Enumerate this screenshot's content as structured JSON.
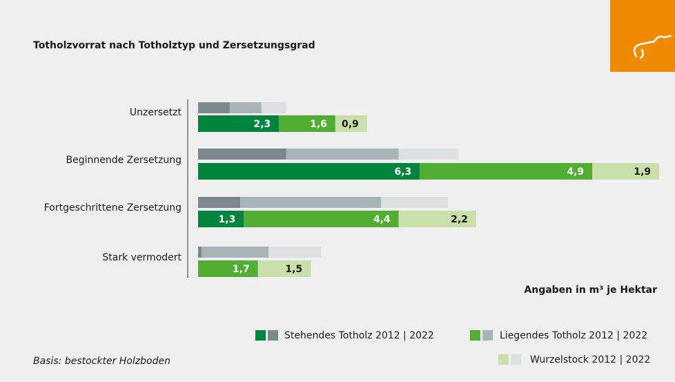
{
  "chart_data": {
    "type": "bar",
    "orientation": "horizontal",
    "stacked": true,
    "title": "Totholzvorrat nach Totholztyp und Zersetzungsgrad",
    "note": "Angaben in m³ je Hektar",
    "source": "Basis: bestockter Holzboden",
    "categories": [
      "Unzersetzt",
      "Beginnende Zersetzung",
      "Fortgeschrittene Zersetzung",
      "Stark vermodert"
    ],
    "series": [
      {
        "name": "Stehendes Totholz 2012 | 2022",
        "color": "#00843d",
        "color_2012": "#7c888d",
        "values": [
          2.3,
          6.3,
          1.3,
          null
        ],
        "value_labels": [
          "2,3",
          "6,3",
          "1,3",
          null
        ],
        "values_2012": [
          0.9,
          2.5,
          1.2,
          0.1
        ]
      },
      {
        "name": "Liegendes Totholz 2012 | 2022",
        "color": "#52ae32",
        "color_2012": "#aab3b7",
        "values": [
          1.6,
          4.9,
          4.4,
          1.7
        ],
        "value_labels": [
          "1,6",
          "4,9",
          "4,4",
          "1,7"
        ],
        "values_2012": [
          0.9,
          3.2,
          4.0,
          1.9
        ]
      },
      {
        "name": "Wurzelstock 2012 | 2022",
        "color": "#c9e0aa",
        "color_2012": "#dce0e2",
        "values": [
          0.9,
          1.9,
          2.2,
          1.5
        ],
        "value_labels": [
          "0,9",
          "1,9",
          "2,2",
          "1,5"
        ],
        "values_2012": [
          0.7,
          1.7,
          1.9,
          1.5
        ]
      }
    ]
  }
}
